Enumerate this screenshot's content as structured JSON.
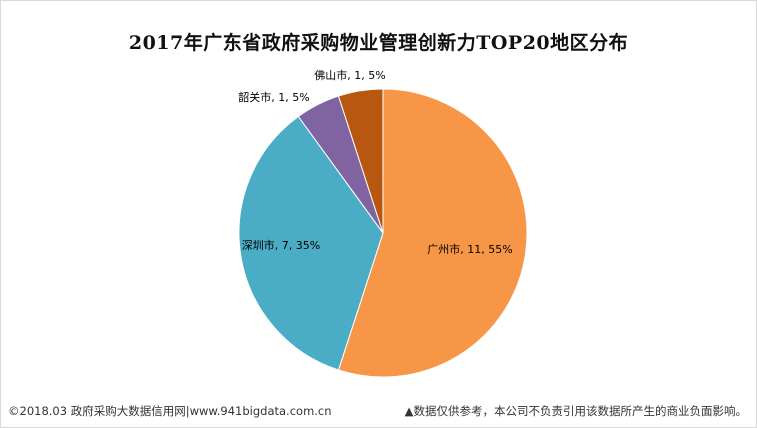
{
  "chart_data": {
    "type": "pie",
    "title": "2017年广东省政府采购物业管理创新力TOP20地区分布",
    "categories": [
      "广州市",
      "深圳市",
      "韶关市",
      "佛山市"
    ],
    "values": [
      11,
      7,
      1,
      1
    ],
    "percents": [
      "55%",
      "35%",
      "5%",
      "5%"
    ],
    "labels": [
      "广州市, 11, 55%",
      "深圳市, 7, 35%",
      "韶关市, 1, 5%",
      "佛山市, 1, 5%"
    ],
    "colors": [
      "#F79646",
      "#4BACC6",
      "#8064A2",
      "#B85710"
    ]
  },
  "footer": {
    "left": "©2018.03 政府采购大数据信用网|www.941bigdata.com.cn",
    "right": "▲数据仅供参考，本公司不负责引用该数据所产生的商业负面影响。"
  }
}
